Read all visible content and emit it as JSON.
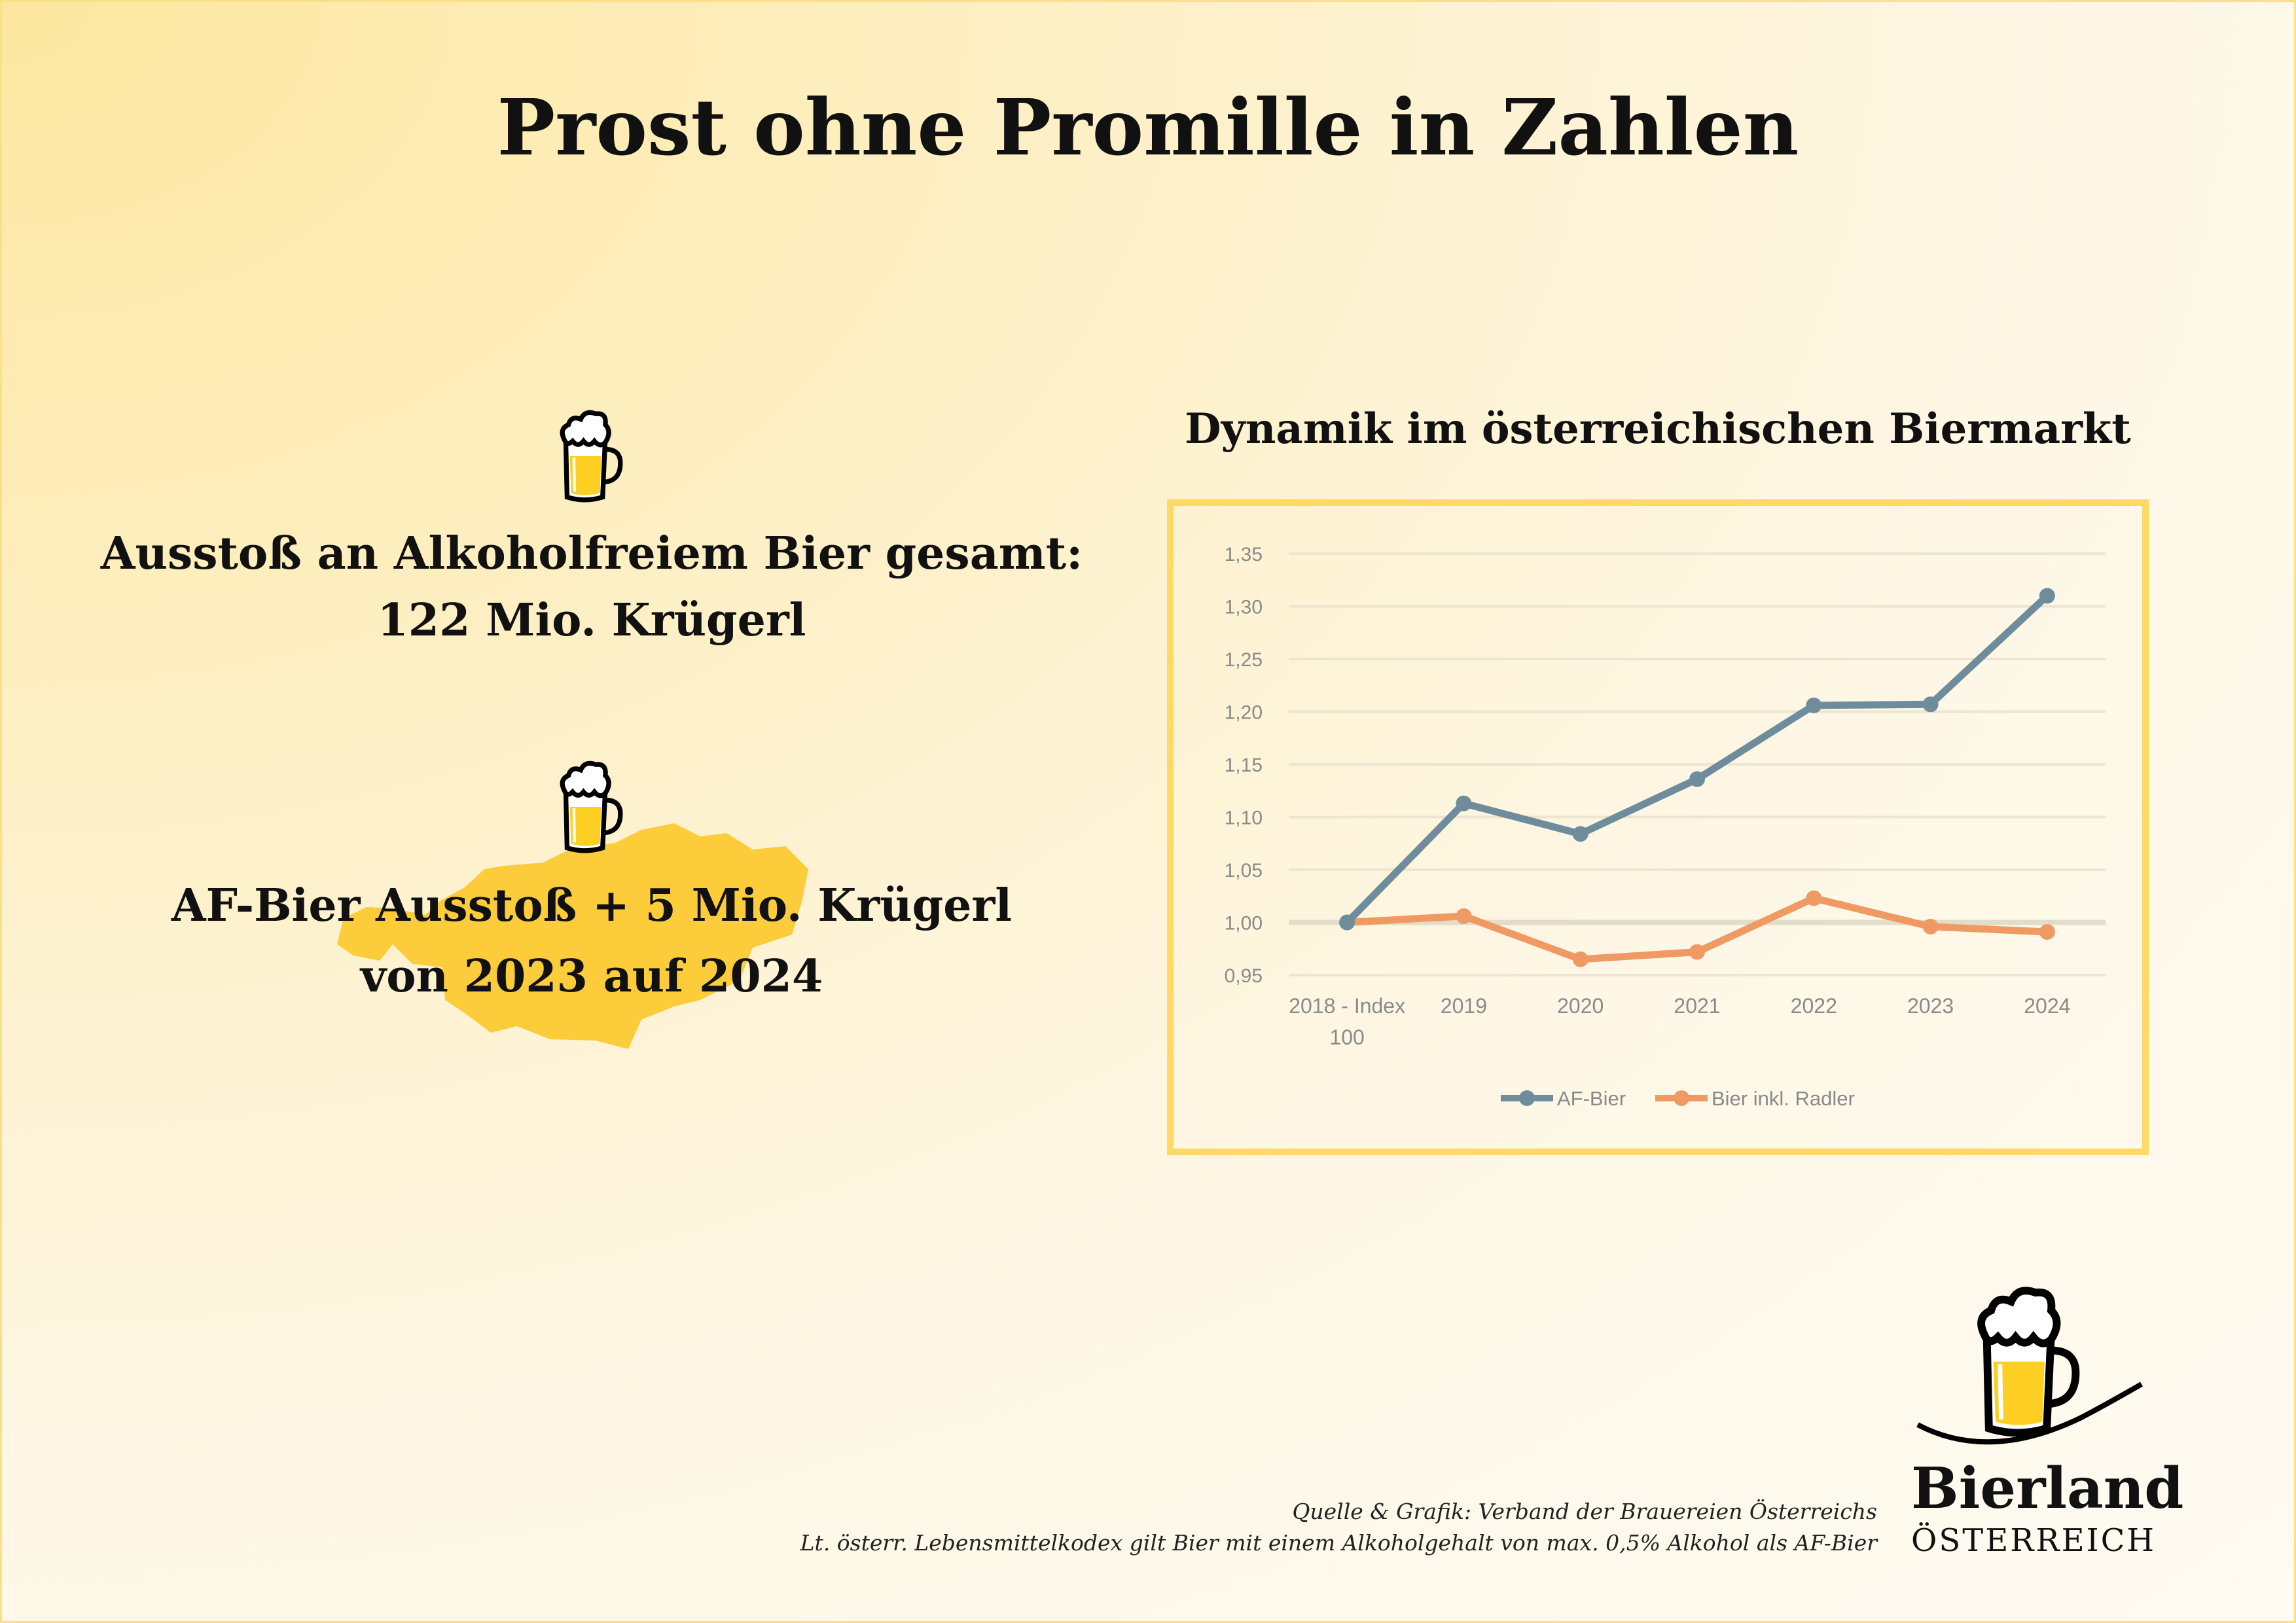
{
  "title": "Prost ohne Promille in Zahlen",
  "stat1": {
    "line1": "Ausstoß an Alkoholfreiem Bier gesamt:",
    "line2": "122 Mio. Krügerl"
  },
  "stat2": {
    "line1": "AF-Bier Ausstoß + 5 Mio. Krügerl",
    "line2": "von 2023 auf 2024"
  },
  "colors": {
    "accent": "#ffd966",
    "beer": "#fccf22",
    "af": "#6e8c9c",
    "radler": "#f09a63",
    "map": "#fdcc3a"
  },
  "chart_data": {
    "type": "line",
    "title": "Dynamik im österreichischen Biermarkt",
    "categories": [
      "2018 - Index 100",
      "2019",
      "2020",
      "2021",
      "2022",
      "2023",
      "2024"
    ],
    "category_lines": [
      [
        "2018 - Index",
        "100"
      ],
      [
        "2019"
      ],
      [
        "2020"
      ],
      [
        "2021"
      ],
      [
        "2022"
      ],
      [
        "2023"
      ],
      [
        "2024"
      ]
    ],
    "ylim": [
      0.95,
      1.35
    ],
    "yticks": [
      "0,95",
      "1,00",
      "1,05",
      "1,10",
      "1,15",
      "1,20",
      "1,25",
      "1,30",
      "1,35"
    ],
    "ytick_values": [
      0.95,
      1.0,
      1.05,
      1.1,
      1.15,
      1.2,
      1.25,
      1.3,
      1.35
    ],
    "grid": true,
    "legend_position": "bottom",
    "series": [
      {
        "name": "AF-Bier",
        "color": "#6e8c9c",
        "values": [
          1.0,
          1.113,
          1.084,
          1.136,
          1.206,
          1.207,
          1.31
        ]
      },
      {
        "name": "Bier inkl. Radler",
        "color": "#f09a63",
        "values": [
          1.0,
          1.006,
          0.965,
          0.972,
          1.023,
          0.996,
          0.991
        ]
      }
    ]
  },
  "footer": {
    "source": "Quelle & Grafik: Verband der Brauereien Österreichs",
    "note": "Lt. österr. Lebensmittelkodex gilt Bier mit einem Alkoholgehalt von max. 0,5% Alkohol als AF-Bier"
  },
  "logo": {
    "word": "Bierland",
    "sub": "ÖSTERREICH"
  }
}
